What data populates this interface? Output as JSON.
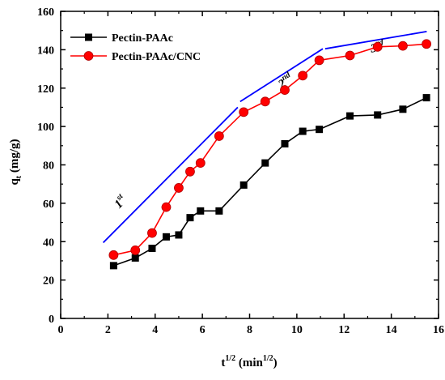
{
  "chart_data": {
    "type": "line",
    "xlabel": "t",
    "xlabel_sup": "1/2",
    "xlabel_unit_prefix": " (min",
    "xlabel_unit_sup": "1/2",
    "xlabel_unit_suffix": ")",
    "ylabel": "q",
    "ylabel_sub": "t",
    "ylabel_unit": " (mg/g)",
    "xlim": [
      0,
      16
    ],
    "ylim": [
      0,
      160
    ],
    "xticks": [
      "0",
      "2",
      "4",
      "6",
      "8",
      "10",
      "12",
      "14",
      "16"
    ],
    "yticks": [
      "0",
      "20",
      "40",
      "60",
      "80",
      "100",
      "120",
      "140",
      "160"
    ],
    "grid": false,
    "legend_position": "top-left",
    "series": [
      {
        "name": "Pectin-PAAc",
        "color": "#000000",
        "marker": "square",
        "x": [
          2.24,
          3.16,
          3.87,
          4.47,
          5.0,
          5.48,
          5.92,
          6.71,
          7.75,
          8.66,
          9.49,
          10.25,
          10.95,
          12.25,
          13.42,
          14.49,
          15.49
        ],
        "y": [
          27.5,
          31.5,
          36.5,
          42.5,
          43.5,
          52.5,
          56,
          56,
          69.5,
          81,
          91,
          97.5,
          98.5,
          105.5,
          106,
          109,
          115
        ]
      },
      {
        "name": "Pectin-PAAc/CNC",
        "color": "#ff0000",
        "marker": "circle",
        "x": [
          2.24,
          3.16,
          3.87,
          4.47,
          5.0,
          5.48,
          5.92,
          6.71,
          7.75,
          8.66,
          9.49,
          10.25,
          10.95,
          12.25,
          13.42,
          14.49,
          15.49
        ],
        "y": [
          33,
          35.5,
          44.5,
          58,
          68,
          76.5,
          81,
          95,
          107.5,
          113,
          119,
          126.5,
          134.5,
          137,
          141.5,
          142,
          143
        ]
      }
    ],
    "fit_lines": [
      {
        "label": "1",
        "label_sup": "st",
        "color": "#0000ff",
        "x": [
          1.8,
          7.5
        ],
        "y": [
          39.5,
          110
        ]
      },
      {
        "label": "2",
        "label_sup": "nd",
        "color": "#0000ff",
        "x": [
          7.6,
          11.1
        ],
        "y": [
          113,
          140.5
        ]
      },
      {
        "label": "3",
        "label_sup": "rd",
        "color": "#0000ff",
        "x": [
          11.2,
          15.5
        ],
        "y": [
          140.5,
          149.5
        ]
      }
    ]
  }
}
